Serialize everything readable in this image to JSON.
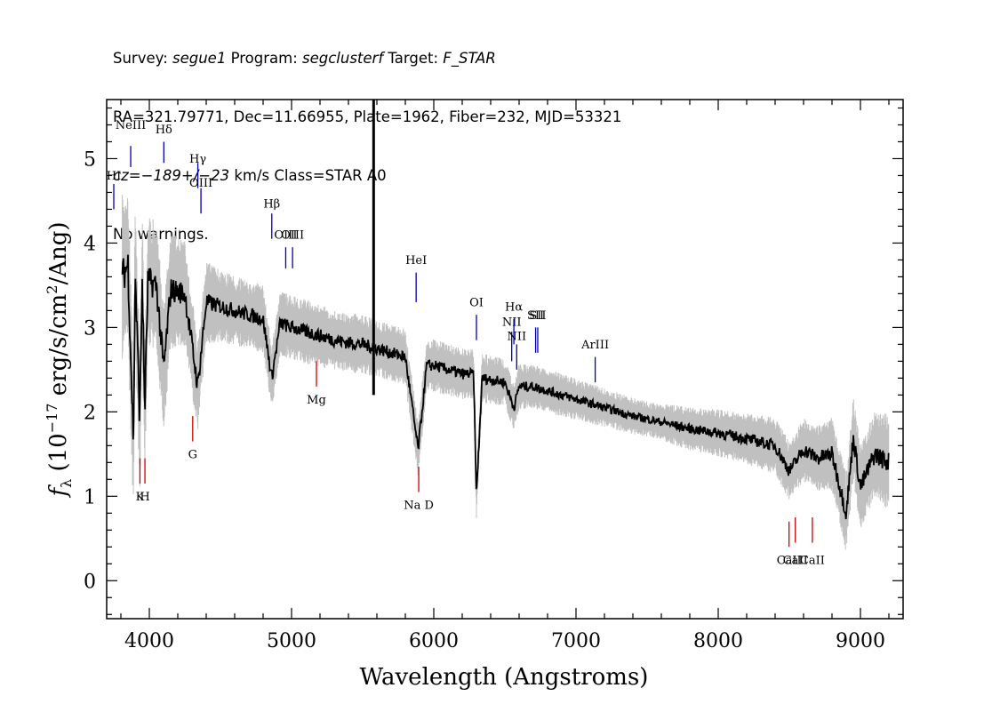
{
  "header": {
    "line1": {
      "survey_label": "Survey: ",
      "survey": "segue1",
      "program_label": " Program: ",
      "program": "segclusterf",
      "target_label": " Target: ",
      "target": "F_STAR"
    },
    "line2": "RA=321.79771, Dec=11.66955, Plate=1962, Fiber=232, MJD=53321",
    "line3": {
      "cz_prefix": "cz=",
      "cz": "−189+/−23",
      "cz_suffix": " km/s Class=STAR A0"
    },
    "line4": "No warnings."
  },
  "chart_data": {
    "type": "line",
    "xlabel": "Wavelength (Angstroms)",
    "ylabel": "fλ (10^-17 erg/s/cm^2/Ang)",
    "xlim": [
      3700,
      9300
    ],
    "ylim": [
      -0.45,
      5.7
    ],
    "grid": false,
    "x_ticks": [
      4000,
      5000,
      6000,
      7000,
      8000,
      9000
    ],
    "y_ticks": [
      0,
      1,
      2,
      3,
      4,
      5
    ],
    "series": [
      {
        "style": "flux",
        "color": "#000000",
        "x": [
          3810,
          3850,
          3889,
          3900,
          3933,
          3950,
          3968,
          3990,
          4050,
          4101,
          4150,
          4250,
          4340,
          4400,
          4500,
          4600,
          4700,
          4800,
          4861,
          4920,
          5000,
          5100,
          5200,
          5300,
          5400,
          5500,
          5600,
          5700,
          5800,
          5890,
          5950,
          6000,
          6100,
          6200,
          6280,
          6300,
          6340,
          6400,
          6500,
          6563,
          6600,
          6700,
          6800,
          6900,
          7000,
          7200,
          7400,
          7600,
          7800,
          8000,
          8200,
          8400,
          8500,
          8600,
          8700,
          8800,
          8900,
          8950,
          9000,
          9100,
          9200
        ],
        "y": [
          3.6,
          3.75,
          1.6,
          3.7,
          1.9,
          3.6,
          2.0,
          3.55,
          3.5,
          2.5,
          3.45,
          3.4,
          2.3,
          3.3,
          3.25,
          3.2,
          3.15,
          3.1,
          2.4,
          3.05,
          3.0,
          2.95,
          2.9,
          2.85,
          2.82,
          2.8,
          2.75,
          2.7,
          2.65,
          1.55,
          2.55,
          2.55,
          2.5,
          2.45,
          2.45,
          1.0,
          2.4,
          2.38,
          2.35,
          2.05,
          2.3,
          2.3,
          2.25,
          2.2,
          2.15,
          2.05,
          1.95,
          1.88,
          1.8,
          1.75,
          1.68,
          1.6,
          1.3,
          1.55,
          1.45,
          1.5,
          0.8,
          1.7,
          1.1,
          1.5,
          1.4
        ]
      },
      {
        "style": "error band",
        "color": "#c0c0c0",
        "x": [
          3800,
          4500,
          5500,
          6500,
          7500,
          8500,
          9200
        ],
        "y": [
          0.7,
          0.3,
          0.25,
          0.2,
          0.15,
          0.25,
          0.4
        ]
      }
    ],
    "spike": {
      "x": 5577,
      "y_top": 5.7,
      "y_bottom": 2.2
    },
    "emission_lines": [
      {
        "label": "NeIII",
        "x": 3869,
        "label_y": 5.35,
        "y1": 5.15,
        "y2": 4.9,
        "color": "#0000aa"
      },
      {
        "label": "Hδ",
        "x": 4102,
        "label_y": 5.3,
        "y1": 5.2,
        "y2": 4.95,
        "color": "#0000aa"
      },
      {
        "label": "Hγ",
        "x": 4341,
        "label_y": 4.95,
        "y1": 4.95,
        "y2": 4.65,
        "color": "#0000aa"
      },
      {
        "label": "OIII",
        "x": 4363,
        "label_y": 4.67,
        "y1": 4.65,
        "y2": 4.35,
        "color": "#0000aa"
      },
      {
        "label": "Hβ",
        "x": 4861,
        "label_y": 4.42,
        "y1": 4.35,
        "y2": 4.05,
        "color": "#0000aa"
      },
      {
        "label": "OIII",
        "x": 4959,
        "label_y": 4.05,
        "y1": 3.95,
        "y2": 3.7,
        "color": "#0000aa"
      },
      {
        "label": "OIII",
        "x": 5007,
        "label_y": 4.05,
        "y1": 3.95,
        "y2": 3.7,
        "color": "#0000aa"
      },
      {
        "label": "HeI",
        "x": 5876,
        "label_y": 3.75,
        "y1": 3.65,
        "y2": 3.3,
        "color": "#0000aa"
      },
      {
        "label": "OI",
        "x": 6300,
        "label_y": 3.25,
        "y1": 3.15,
        "y2": 2.85,
        "color": "#0000aa"
      },
      {
        "label": "NII",
        "x": 6548,
        "label_y": 3.02,
        "y1": 2.95,
        "y2": 2.6,
        "color": "#0000aa"
      },
      {
        "label": "Hα",
        "x": 6563,
        "label_y": 3.2,
        "y1": 3.1,
        "y2": 2.8,
        "color": "#0000aa"
      },
      {
        "label": "NII",
        "x": 6583,
        "label_y": 2.85,
        "y1": 2.8,
        "y2": 2.5,
        "color": "#0000aa"
      },
      {
        "label": "SII",
        "x": 6716,
        "label_y": 3.1,
        "y1": 3.0,
        "y2": 2.7,
        "color": "#0000aa"
      },
      {
        "label": "SII",
        "x": 6731,
        "label_y": 3.1,
        "y1": 3.0,
        "y2": 2.7,
        "color": "#0000aa"
      },
      {
        "label": "ArIII",
        "x": 7135,
        "label_y": 2.75,
        "y1": 2.65,
        "y2": 2.35,
        "color": "#0000aa"
      },
      {
        "label": "HI",
        "x": 3750,
        "label_y": 4.75,
        "y1": 4.7,
        "y2": 4.4,
        "color": "#0000aa"
      }
    ],
    "absorption_lines": [
      {
        "label": "K",
        "x": 3934,
        "label_y": 0.95,
        "y1": 1.45,
        "y2": 1.15,
        "color": "#cc0000"
      },
      {
        "label": "H",
        "x": 3969,
        "label_y": 0.95,
        "y1": 1.45,
        "y2": 1.15,
        "color": "#cc0000"
      },
      {
        "label": "G",
        "x": 4305,
        "label_y": 1.45,
        "y1": 1.95,
        "y2": 1.65,
        "color": "#cc0000"
      },
      {
        "label": "Mg",
        "x": 5175,
        "label_y": 2.1,
        "y1": 2.6,
        "y2": 2.3,
        "color": "#cc0000"
      },
      {
        "label": "Na D",
        "x": 5894,
        "label_y": 0.85,
        "y1": 1.35,
        "y2": 1.05,
        "color": "#cc0000"
      },
      {
        "label": "CaII",
        "x": 8498,
        "label_y": 0.2,
        "y1": 0.7,
        "y2": 0.4,
        "color": "#cc0000"
      },
      {
        "label": "CaII",
        "x": 8542,
        "label_y": 0.2,
        "y1": 0.75,
        "y2": 0.45,
        "color": "#cc0000"
      },
      {
        "label": "CaII",
        "x": 8662,
        "label_y": 0.2,
        "y1": 0.75,
        "y2": 0.45,
        "color": "#cc0000"
      }
    ]
  }
}
